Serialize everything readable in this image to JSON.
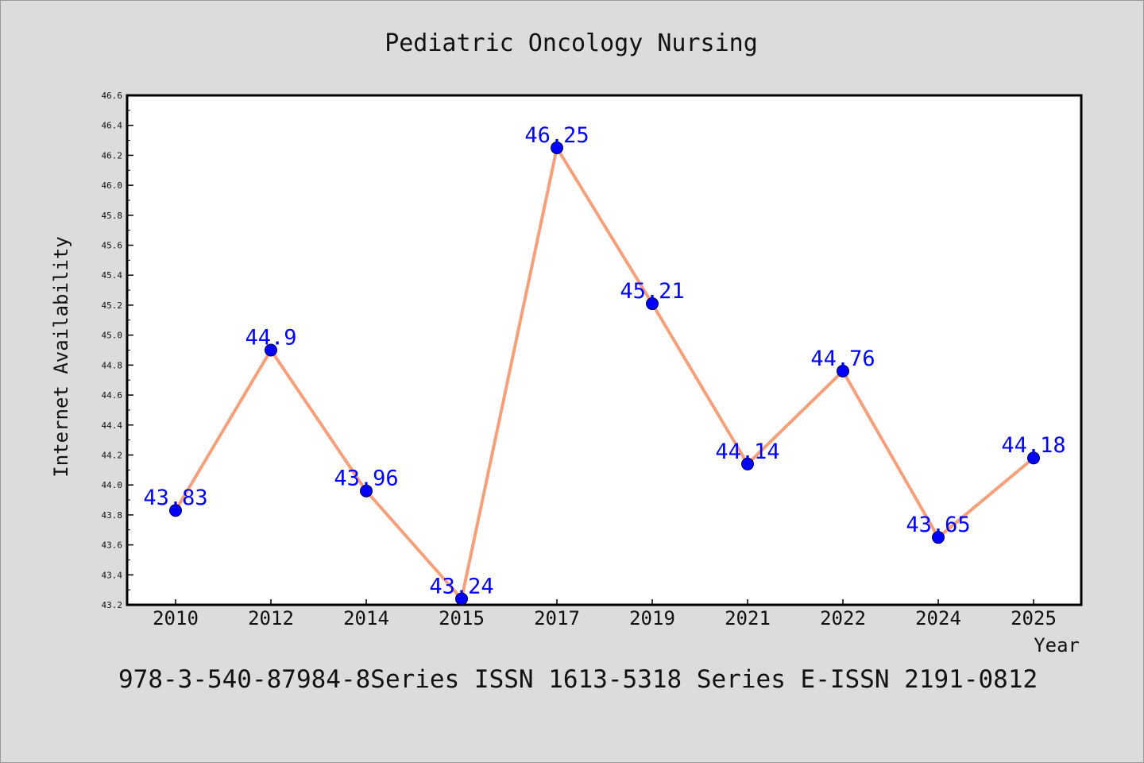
{
  "chart_data": {
    "type": "line",
    "title": "Pediatric Oncology Nursing",
    "xlabel": "Year",
    "ylabel": "Internet Availability",
    "categories": [
      "2010",
      "2012",
      "2014",
      "2015",
      "2017",
      "2019",
      "2021",
      "2022",
      "2024",
      "2025"
    ],
    "series": [
      {
        "values": [
          43.83,
          44.9,
          43.96,
          43.24,
          46.25,
          45.21,
          44.14,
          44.76,
          43.65,
          44.18
        ],
        "line_color": "#f5a07a",
        "marker_color": "#0000ff"
      }
    ],
    "data_labels": [
      "43.83",
      "44.9",
      "43.96",
      "43.24",
      "46.25",
      "45.21",
      "44.14",
      "44.76",
      "43.65",
      "44.18"
    ],
    "ylim": [
      43.2,
      46.6
    ],
    "yticks": [
      "43.2",
      "43.4",
      "43.6",
      "43.8",
      "44.0",
      "44.2",
      "44.4",
      "44.6",
      "44.8",
      "45.0",
      "45.2",
      "45.4",
      "45.6",
      "45.8",
      "46.0",
      "46.2",
      "46.4",
      "46.6"
    ],
    "grid": false,
    "legend": "none"
  },
  "footer": "978-3-540-87984-8Series ISSN 1613-5318 Series E-ISSN 2191-0812",
  "colors": {
    "background": "#dcdcdc",
    "plot_background": "#ffffff",
    "line": "#f5a07a",
    "marker": "#0000ff",
    "data_label": "#0000ff"
  }
}
